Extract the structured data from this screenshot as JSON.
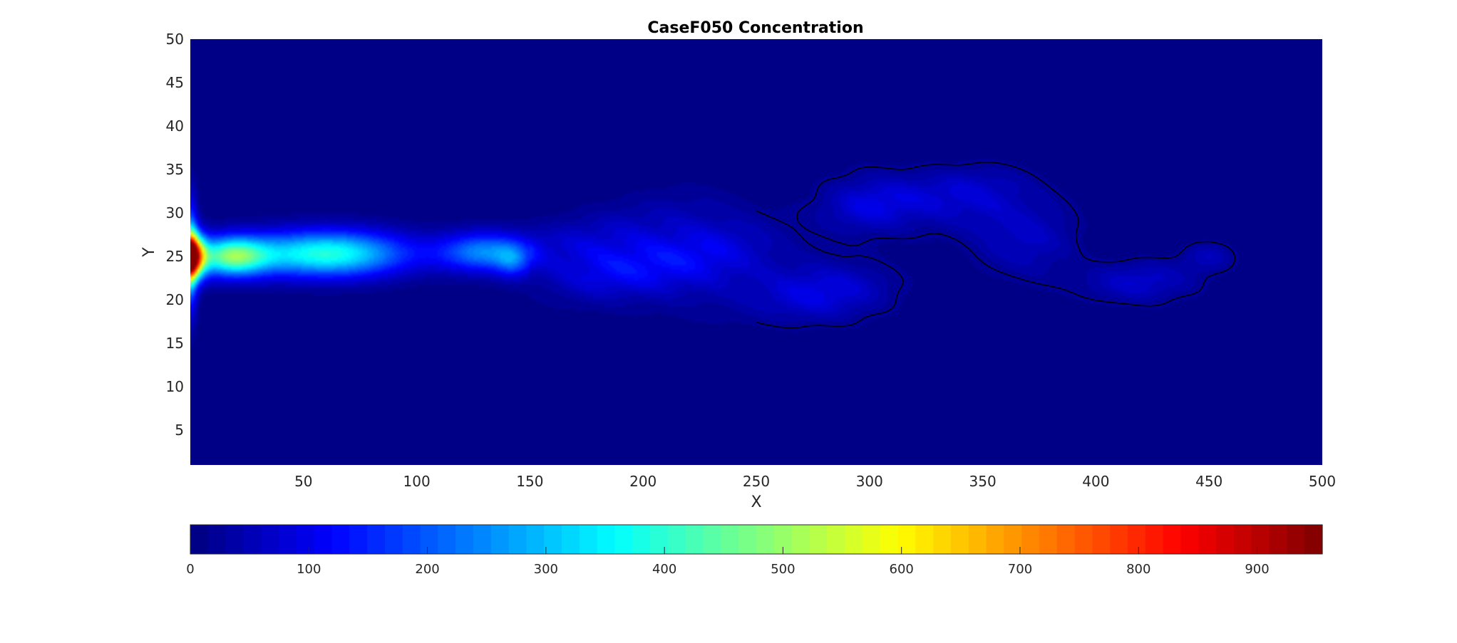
{
  "chart_data": {
    "type": "heatmap",
    "title": "CaseF050 Concentration",
    "xlabel": "X",
    "ylabel": "Y",
    "xlim": [
      0,
      500
    ],
    "ylim": [
      1,
      50
    ],
    "xticks": [
      50,
      100,
      150,
      200,
      250,
      300,
      350,
      400,
      450,
      500
    ],
    "yticks": [
      5,
      10,
      15,
      20,
      25,
      30,
      35,
      40,
      45,
      50
    ],
    "grid": false,
    "colormap": "jet",
    "colorbar": {
      "location": "bottom",
      "range": [
        0,
        955
      ],
      "levels": 64,
      "ticks": [
        0,
        100,
        200,
        300,
        400,
        500,
        600,
        700,
        800,
        900
      ]
    },
    "background_value": 0,
    "plume_features": [
      {
        "name": "source jet core",
        "x": 0,
        "y": 25,
        "sx": 6,
        "sy": 2.5,
        "value": 880
      },
      {
        "name": "inlet spread",
        "x": 0,
        "y": 25,
        "sx": 3,
        "sy": 6,
        "value": 300
      },
      {
        "name": "near field jet",
        "x": 18,
        "y": 25,
        "sx": 16,
        "sy": 2.2,
        "value": 420
      },
      {
        "name": "mid jet",
        "x": 60,
        "y": 25.3,
        "sx": 35,
        "sy": 2.6,
        "value": 390
      },
      {
        "name": "jet tail",
        "x": 130,
        "y": 25.5,
        "sx": 20,
        "sy": 2.2,
        "value": 240
      },
      {
        "name": "jet tip",
        "x": 142,
        "y": 24.5,
        "sx": 7,
        "sy": 1.8,
        "value": 120
      },
      {
        "name": "eddy 1",
        "x": 180,
        "y": 24.5,
        "sx": 30,
        "sy": 4,
        "value": 100
      },
      {
        "name": "eddy 2",
        "x": 222,
        "y": 25.5,
        "sx": 35,
        "sy": 5.5,
        "value": 95
      },
      {
        "name": "eddy 3",
        "x": 278,
        "y": 21,
        "sx": 30,
        "sy": 3.5,
        "value": 85
      },
      {
        "name": "eddy 4",
        "x": 300,
        "y": 31,
        "sx": 22,
        "sy": 3.5,
        "value": 75
      },
      {
        "name": "eddy 5",
        "x": 345,
        "y": 31.5,
        "sx": 32,
        "sy": 3.5,
        "value": 80
      },
      {
        "name": "eddy 6",
        "x": 370,
        "y": 26,
        "sx": 22,
        "sy": 4,
        "value": 55
      },
      {
        "name": "eddy 7",
        "x": 420,
        "y": 22,
        "sx": 25,
        "sy": 2.5,
        "value": 65
      },
      {
        "name": "eddy 8",
        "x": 450,
        "y": 25,
        "sx": 12,
        "sy": 1.8,
        "value": 45
      }
    ],
    "contour_level": 20
  }
}
